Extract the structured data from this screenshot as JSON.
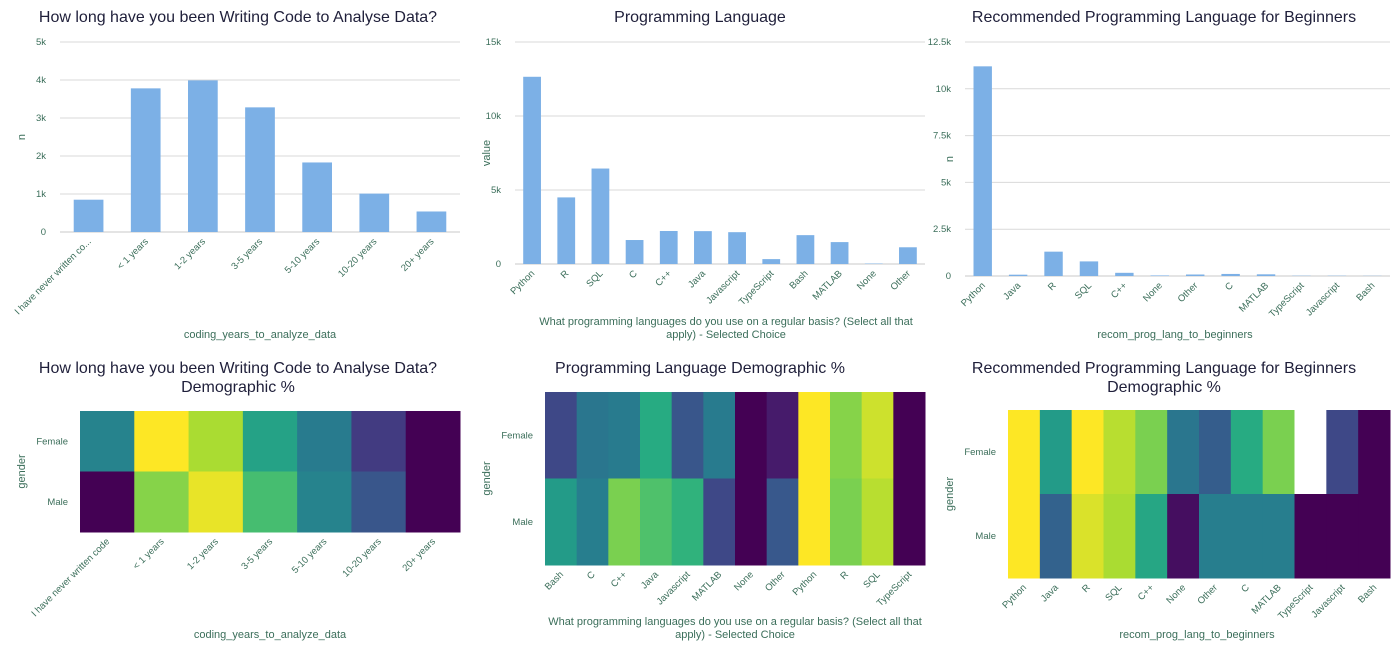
{
  "chart_data": [
    {
      "type": "bar",
      "title": "How long have you been Writing Code to Analyse Data?",
      "xlabel": "coding_years_to_analyze_data",
      "ylabel": "n",
      "categories": [
        "I have never written co...",
        "< 1 years",
        "1-2 years",
        "3-5 years",
        "5-10 years",
        "10-20 years",
        "20+ years"
      ],
      "values": [
        850,
        3780,
        3990,
        3280,
        1830,
        1010,
        540
      ],
      "ylim": [
        0,
        5000
      ],
      "yticks": [
        0,
        1000,
        2000,
        3000,
        4000,
        5000
      ],
      "ytick_labels": [
        "0",
        "1k",
        "2k",
        "3k",
        "4k",
        "5k"
      ],
      "bar_color": "#7cb0e6",
      "grid": true
    },
    {
      "type": "bar",
      "title": "Programming Language",
      "xlabel": "What programming languages do you use on a regular basis? (Select all that apply) - Selected Choice",
      "ylabel": "value",
      "categories": [
        "Python",
        "R",
        "SQL",
        "C",
        "C++",
        "Java",
        "Javascript",
        "TypeScript",
        "Bash",
        "MATLAB",
        "None",
        "Other"
      ],
      "values": [
        12650,
        4500,
        6450,
        1620,
        2230,
        2220,
        2150,
        330,
        1950,
        1480,
        30,
        1130
      ],
      "ylim": [
        0,
        15000
      ],
      "yticks": [
        0,
        5000,
        10000,
        15000
      ],
      "ytick_labels": [
        "0",
        "5k",
        "10k",
        "15k"
      ],
      "bar_color": "#7cb0e6",
      "grid": true
    },
    {
      "type": "bar",
      "title": "Recommended Programming Language for Beginners",
      "xlabel": "recom_prog_lang_to_beginners",
      "ylabel": "n",
      "categories": [
        "Python",
        "Java",
        "R",
        "SQL",
        "C++",
        "None",
        "Other",
        "C",
        "MATLAB",
        "TypeScript",
        "Javascript",
        "Bash"
      ],
      "values": [
        11200,
        70,
        1300,
        780,
        170,
        30,
        80,
        110,
        90,
        15,
        15,
        10
      ],
      "ylim": [
        0,
        12500
      ],
      "yticks": [
        0,
        2500,
        5000,
        7500,
        10000,
        12500
      ],
      "ytick_labels": [
        "0",
        "2.5k",
        "5k",
        "7.5k",
        "10k",
        "12.5k"
      ],
      "bar_color": "#7cb0e6",
      "grid": true
    },
    {
      "type": "heatmap",
      "title": [
        "How long have you been Writing Code to Analyse Data?",
        "Demographic %"
      ],
      "xlabel": "coding_years_to_analyze_data",
      "ylabel": "gender",
      "x": [
        "I have never written code",
        "< 1 years",
        "1-2 years",
        "3-5 years",
        "5-10 years",
        "10-20 years",
        "20+ years"
      ],
      "y": [
        "Female",
        "Male"
      ],
      "values": [
        [
          0.45,
          1.0,
          0.88,
          0.58,
          0.42,
          0.18,
          0.0
        ],
        [
          0.0,
          0.82,
          0.97,
          0.7,
          0.45,
          0.27,
          0.0
        ]
      ],
      "colorscale": "viridis"
    },
    {
      "type": "heatmap",
      "title": "Programming Language Demographic %",
      "xlabel": "What programming languages do you use on a regular basis? (Select all that apply) - Selected Choice",
      "ylabel": "gender",
      "x": [
        "Bash",
        "C",
        "C++",
        "Java",
        "Javascript",
        "MATLAB",
        "None",
        "Other",
        "Python",
        "R",
        "SQL",
        "TypeScript"
      ],
      "y": [
        "Female",
        "Male"
      ],
      "values": [
        [
          0.22,
          0.4,
          0.42,
          0.62,
          0.27,
          0.42,
          0.0,
          0.08,
          1.0,
          0.82,
          0.93,
          0.0
        ],
        [
          0.55,
          0.43,
          0.8,
          0.72,
          0.65,
          0.22,
          0.0,
          0.28,
          1.0,
          0.8,
          0.9,
          0.0
        ]
      ],
      "colorscale": "viridis"
    },
    {
      "type": "heatmap",
      "title": [
        "Recommended Programming Language for Beginners",
        "Demographic %"
      ],
      "xlabel": "recom_prog_lang_to_beginners",
      "ylabel": "gender",
      "x": [
        "Python",
        "Java",
        "R",
        "SQL",
        "C++",
        "None",
        "Other",
        "C",
        "MATLAB",
        "TypeScript",
        "Javascript",
        "Bash"
      ],
      "y": [
        "Female",
        "Male"
      ],
      "values": [
        [
          1.0,
          0.55,
          1.0,
          0.9,
          0.8,
          0.4,
          0.3,
          0.62,
          0.8,
          null,
          0.22,
          0.0
        ],
        [
          1.0,
          0.32,
          0.95,
          0.88,
          0.6,
          0.04,
          0.43,
          0.43,
          0.43,
          0.0,
          0.0,
          0.0
        ]
      ],
      "colorscale": "viridis"
    }
  ]
}
